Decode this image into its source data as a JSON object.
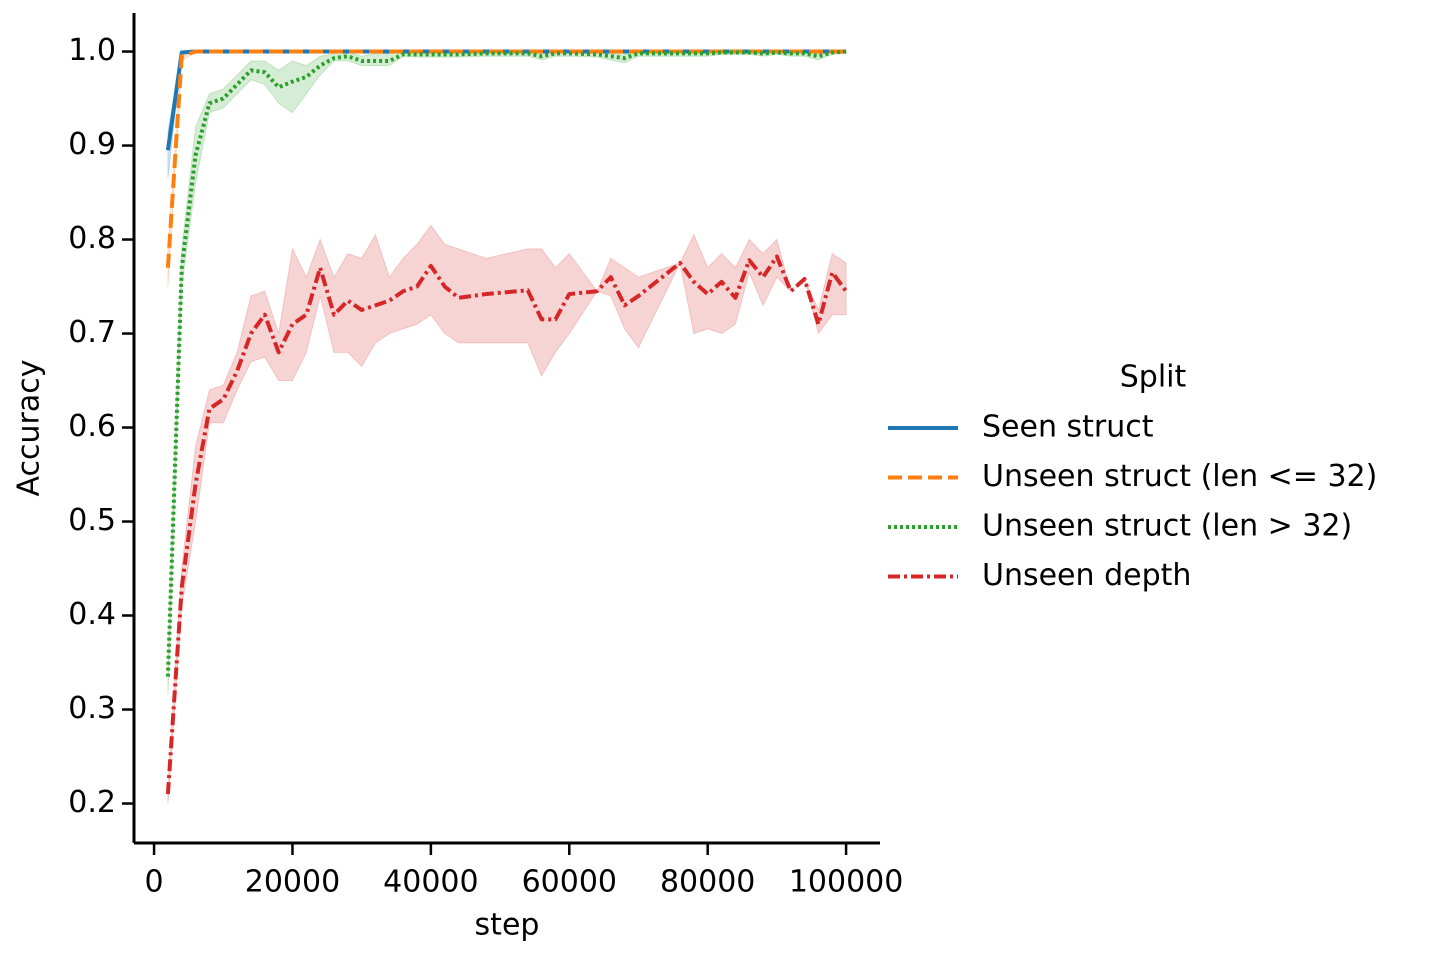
{
  "chart_data": {
    "type": "line",
    "x_label": "step",
    "y_label": "Accuracy",
    "legend_title": "Split",
    "legend": "right",
    "xlim": [
      -2900,
      104900
    ],
    "ylim": [
      0.158,
      1.041
    ],
    "xticks": [
      0,
      20000,
      40000,
      60000,
      80000,
      100000
    ],
    "yticks": [
      0.2,
      0.3,
      0.4,
      0.5,
      0.6,
      0.7,
      0.8,
      0.9,
      {
        "value": 1,
        "label": "1.0"
      }
    ],
    "x": [
      2000,
      4000,
      6000,
      8000,
      10000,
      12000,
      14000,
      16000,
      18000,
      20000,
      22000,
      24000,
      26000,
      28000,
      30000,
      32000,
      34000,
      36000,
      38000,
      40000,
      42000,
      44000,
      48000,
      54000,
      56000,
      58000,
      60000,
      64000,
      66000,
      68000,
      70000,
      76000,
      78000,
      80000,
      82000,
      84000,
      86000,
      88000,
      90000,
      92000,
      94000,
      96000,
      98000,
      100000
    ],
    "series": [
      {
        "name": "Seen struct",
        "color": "#1f77b4",
        "dash": "none",
        "values": [
          0.895,
          0.999,
          1,
          1,
          1,
          1,
          1,
          1,
          1,
          1,
          1,
          1,
          1,
          1,
          1,
          1,
          1,
          1,
          1,
          1,
          1,
          1,
          1,
          1,
          1,
          1,
          1,
          1,
          1,
          1,
          1,
          1,
          1,
          1,
          1,
          1,
          1,
          1,
          1,
          1,
          1,
          1,
          1,
          1
        ],
        "lower": [
          0.865,
          0.998,
          1,
          1,
          1,
          1,
          1,
          1,
          1,
          1,
          1,
          1,
          1,
          1,
          1,
          1,
          1,
          1,
          1,
          1,
          1,
          1,
          1,
          1,
          1,
          1,
          1,
          1,
          1,
          1,
          1,
          1,
          1,
          1,
          1,
          1,
          1,
          1,
          1,
          1,
          1,
          1,
          1,
          1
        ],
        "upper": [
          0.915,
          1,
          1,
          1,
          1,
          1,
          1,
          1,
          1,
          1,
          1,
          1,
          1,
          1,
          1,
          1,
          1,
          1,
          1,
          1,
          1,
          1,
          1,
          1,
          1,
          1,
          1,
          1,
          1,
          1,
          1,
          1,
          1,
          1,
          1,
          1,
          1,
          1,
          1,
          1,
          1,
          1,
          1,
          1
        ]
      },
      {
        "name": "Unseen struct (len <= 32)",
        "color": "#ff7f0e",
        "dash": "14 6",
        "values": [
          0.77,
          0.995,
          1,
          1,
          1,
          1,
          1,
          1,
          1,
          1,
          1,
          1,
          1,
          1,
          1,
          1,
          1,
          1,
          1,
          1,
          1,
          1,
          1,
          1,
          1,
          1,
          1,
          1,
          1,
          1,
          1,
          1,
          1,
          1,
          1,
          1,
          1,
          1,
          1,
          1,
          1,
          1,
          1,
          1
        ],
        "lower": [
          0.75,
          0.99,
          1,
          1,
          1,
          1,
          1,
          1,
          1,
          1,
          1,
          1,
          1,
          1,
          1,
          1,
          1,
          1,
          1,
          1,
          1,
          1,
          1,
          1,
          1,
          1,
          1,
          1,
          1,
          1,
          1,
          1,
          1,
          1,
          1,
          1,
          1,
          1,
          1,
          1,
          1,
          1,
          1,
          1
        ],
        "upper": [
          0.79,
          0.998,
          1,
          1,
          1,
          1,
          1,
          1,
          1,
          1,
          1,
          1,
          1,
          1,
          1,
          1,
          1,
          1,
          1,
          1,
          1,
          1,
          1,
          1,
          1,
          1,
          1,
          1,
          1,
          1,
          1,
          1,
          1,
          1,
          1,
          1,
          1,
          1,
          1,
          1,
          1,
          1,
          1,
          1
        ]
      },
      {
        "name": "Unseen struct (len > 32)",
        "color": "#2ca02c",
        "dash": "3 3",
        "values": [
          0.335,
          0.77,
          0.89,
          0.945,
          0.95,
          0.965,
          0.98,
          0.978,
          0.962,
          0.968,
          0.973,
          0.985,
          0.993,
          0.995,
          0.99,
          0.99,
          0.99,
          0.997,
          0.997,
          0.997,
          0.997,
          0.997,
          0.998,
          0.998,
          0.995,
          0.998,
          0.998,
          0.997,
          0.995,
          0.993,
          0.998,
          0.998,
          0.998,
          0.998,
          0.999,
          0.999,
          0.999,
          0.998,
          0.999,
          0.998,
          0.998,
          0.995,
          0.999,
          1
        ],
        "lower": [
          0.315,
          0.75,
          0.86,
          0.935,
          0.94,
          0.955,
          0.97,
          0.965,
          0.945,
          0.935,
          0.955,
          0.975,
          0.99,
          0.99,
          0.985,
          0.985,
          0.985,
          0.995,
          0.994,
          0.994,
          0.994,
          0.994,
          0.995,
          0.995,
          0.991,
          0.995,
          0.995,
          0.994,
          0.991,
          0.988,
          0.995,
          0.995,
          0.995,
          0.995,
          0.997,
          0.997,
          0.997,
          0.995,
          0.997,
          0.995,
          0.995,
          0.991,
          0.997,
          0.998
        ],
        "upper": [
          0.35,
          0.79,
          0.92,
          0.955,
          0.96,
          0.975,
          0.99,
          0.99,
          0.98,
          0.99,
          0.985,
          0.995,
          0.998,
          1,
          0.995,
          0.998,
          0.998,
          1,
          1,
          1,
          1,
          1,
          1,
          1,
          0.998,
          1,
          1,
          1,
          0.998,
          0.997,
          1,
          1,
          1,
          1,
          1,
          1,
          1,
          1,
          1,
          1,
          1,
          0.998,
          1,
          1
        ]
      },
      {
        "name": "Unseen depth",
        "color": "#d62728",
        "dash": "12 4 3 4",
        "values": [
          0.21,
          0.43,
          0.54,
          0.62,
          0.63,
          0.66,
          0.7,
          0.72,
          0.68,
          0.71,
          0.72,
          0.77,
          0.72,
          0.735,
          0.725,
          0.73,
          0.735,
          0.745,
          0.75,
          0.772,
          0.75,
          0.738,
          0.742,
          0.746,
          0.715,
          0.715,
          0.742,
          0.745,
          0.76,
          0.73,
          0.74,
          0.775,
          0.755,
          0.742,
          0.755,
          0.738,
          0.778,
          0.76,
          0.782,
          0.745,
          0.758,
          0.71,
          0.765,
          0.745
        ],
        "lower": [
          0.2,
          0.41,
          0.5,
          0.605,
          0.605,
          0.64,
          0.67,
          0.675,
          0.65,
          0.65,
          0.68,
          0.74,
          0.68,
          0.68,
          0.665,
          0.69,
          0.7,
          0.705,
          0.71,
          0.72,
          0.7,
          0.69,
          0.69,
          0.69,
          0.655,
          0.68,
          0.7,
          0.745,
          0.74,
          0.705,
          0.685,
          0.775,
          0.7,
          0.705,
          0.7,
          0.71,
          0.765,
          0.73,
          0.76,
          0.745,
          0.758,
          0.7,
          0.72,
          0.72
        ],
        "upper": [
          0.22,
          0.45,
          0.58,
          0.64,
          0.645,
          0.68,
          0.74,
          0.745,
          0.7,
          0.79,
          0.76,
          0.8,
          0.76,
          0.785,
          0.78,
          0.805,
          0.76,
          0.78,
          0.795,
          0.815,
          0.795,
          0.79,
          0.78,
          0.79,
          0.79,
          0.77,
          0.785,
          0.745,
          0.78,
          0.77,
          0.76,
          0.775,
          0.805,
          0.77,
          0.785,
          0.77,
          0.8,
          0.785,
          0.8,
          0.745,
          0.758,
          0.725,
          0.785,
          0.775
        ]
      }
    ]
  }
}
